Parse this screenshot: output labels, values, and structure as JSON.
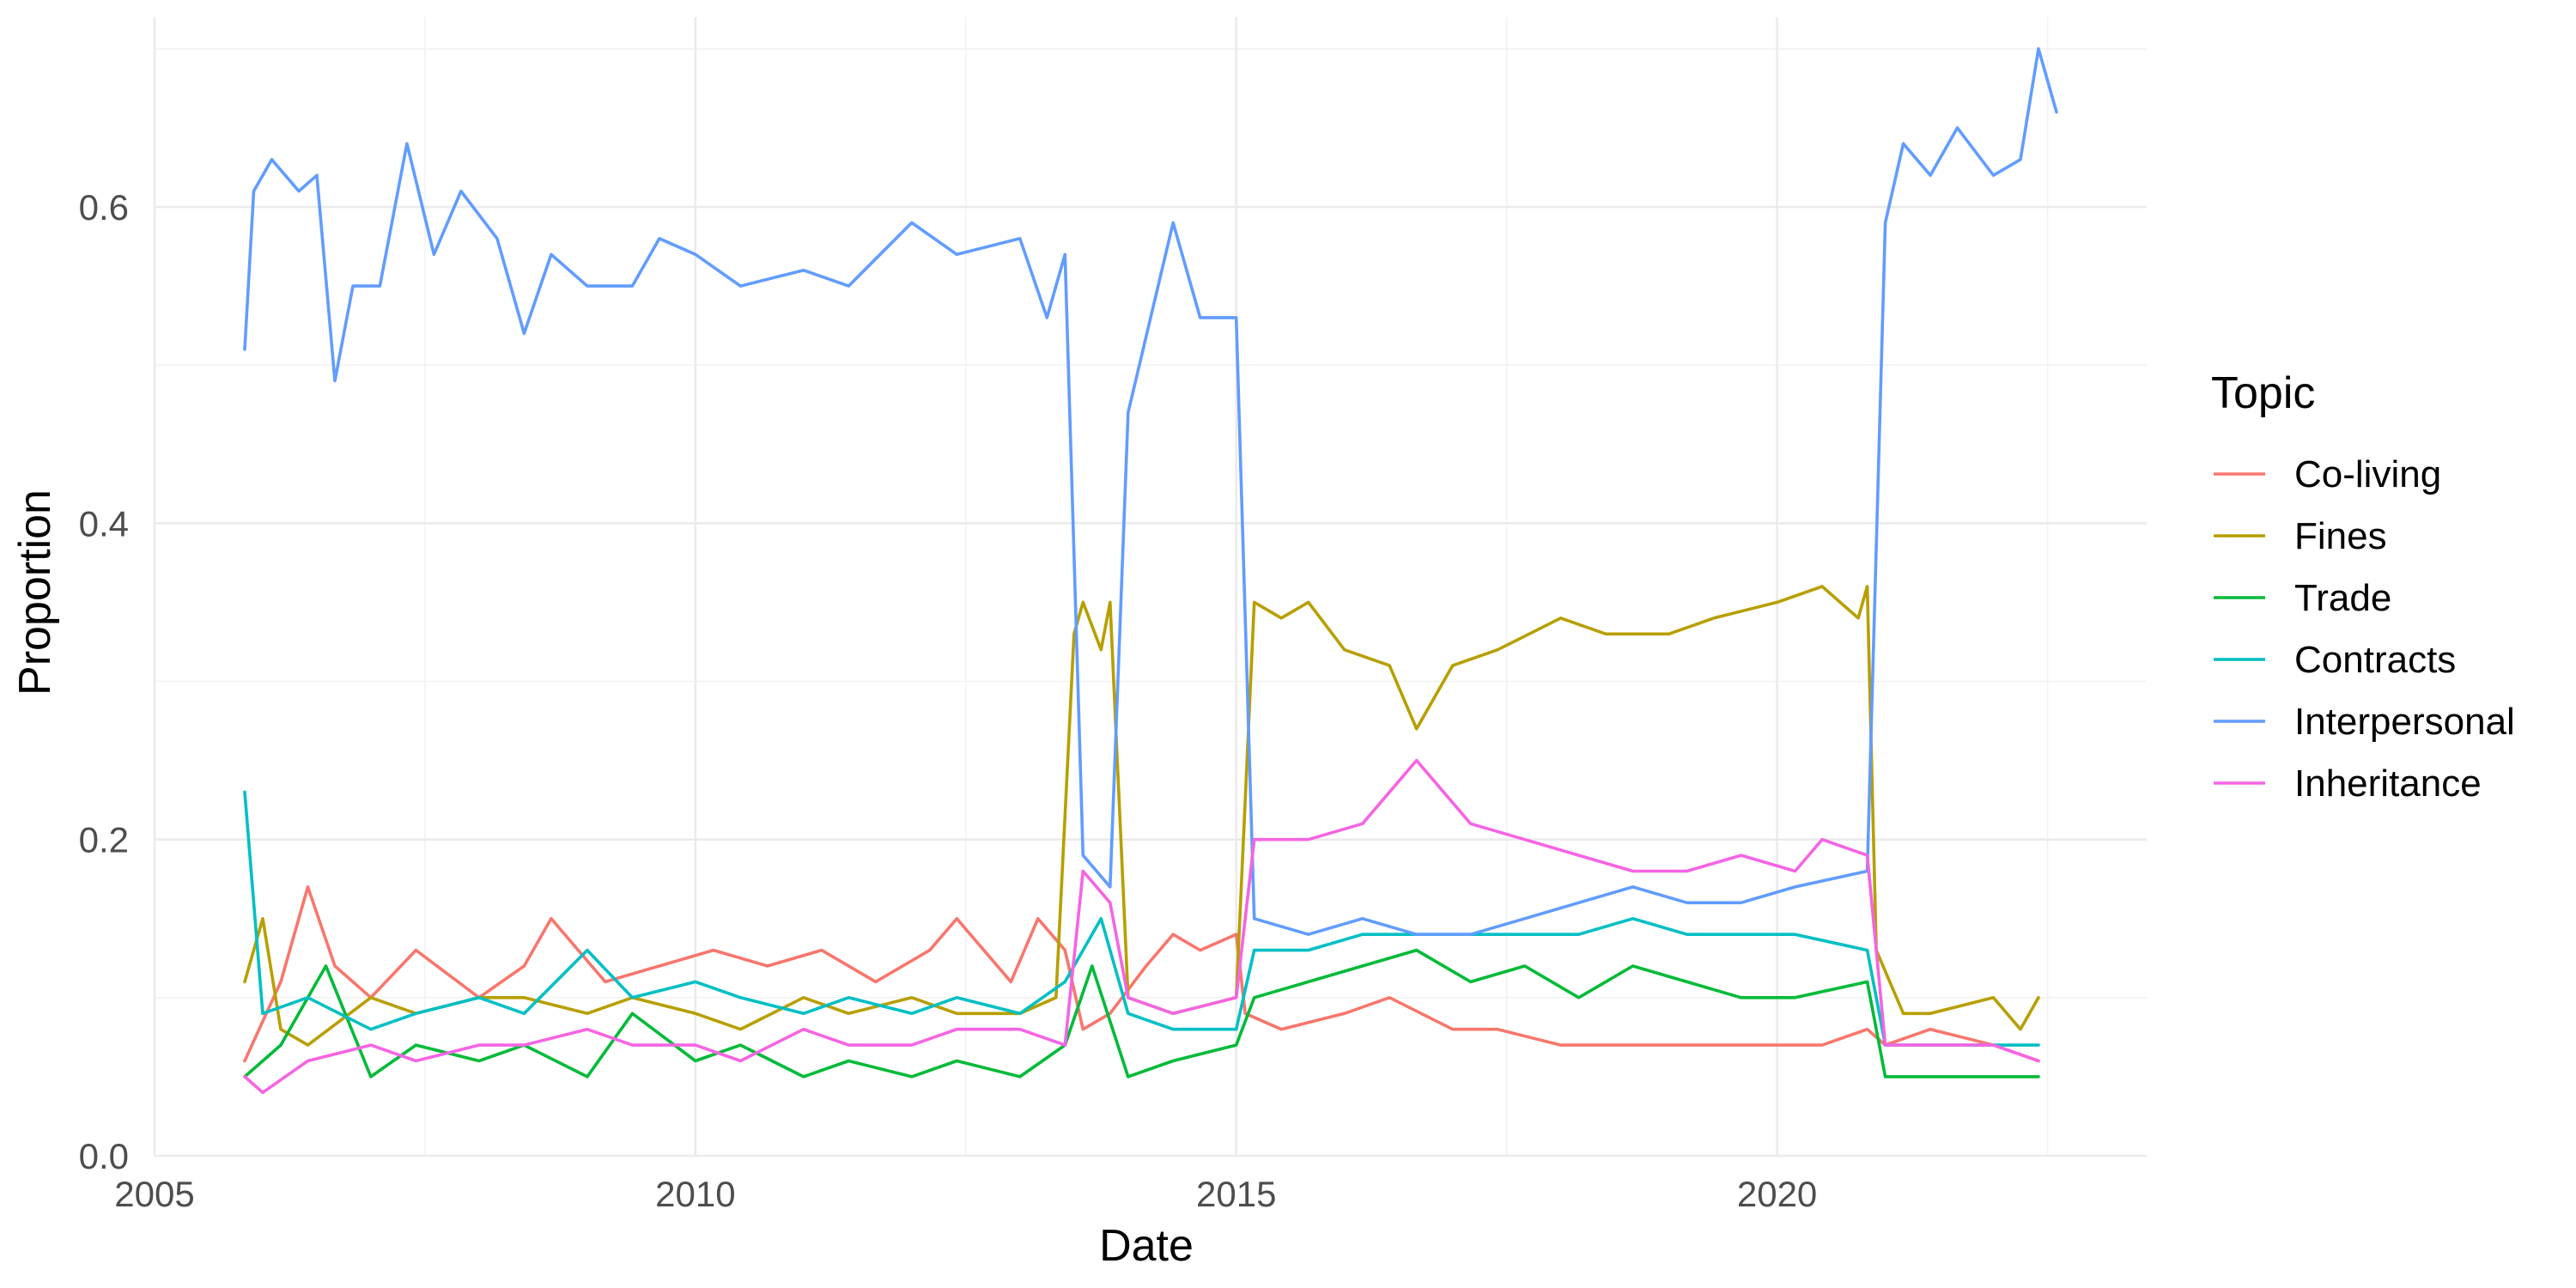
{
  "chart_data": {
    "type": "line",
    "title": "",
    "xlabel": "Date",
    "ylabel": "Proportion",
    "x_range": [
      "2005-01-01",
      "2023-06-01"
    ],
    "ylim": [
      0,
      0.72
    ],
    "x_ticks": [
      {
        "label": "2005",
        "date": "2005-01-01"
      },
      {
        "label": "2010",
        "date": "2010-01-01"
      },
      {
        "label": "2015",
        "date": "2015-01-01"
      },
      {
        "label": "2020",
        "date": "2020-01-01"
      }
    ],
    "y_ticks": [
      0,
      0.2,
      0.4,
      0.6
    ],
    "y_tick_labels": [
      "0.0",
      "0.2",
      "0.4",
      "0.6"
    ],
    "grid": true,
    "legend": {
      "title": "Topic",
      "position": "right"
    },
    "series": [
      {
        "name": "Co-living",
        "color": "#F8766D",
        "points": [
          [
            "2005-11",
            0.06
          ],
          [
            "2006-03",
            0.11
          ],
          [
            "2006-06",
            0.17
          ],
          [
            "2006-09",
            0.12
          ],
          [
            "2007-01",
            0.1
          ],
          [
            "2007-06",
            0.13
          ],
          [
            "2008-01",
            0.1
          ],
          [
            "2008-06",
            0.12
          ],
          [
            "2008-09",
            0.15
          ],
          [
            "2009-03",
            0.11
          ],
          [
            "2009-09",
            0.12
          ],
          [
            "2010-03",
            0.13
          ],
          [
            "2010-09",
            0.12
          ],
          [
            "2011-03",
            0.13
          ],
          [
            "2011-09",
            0.11
          ],
          [
            "2012-03",
            0.13
          ],
          [
            "2012-06",
            0.15
          ],
          [
            "2012-12",
            0.11
          ],
          [
            "2013-03",
            0.15
          ],
          [
            "2013-06",
            0.13
          ],
          [
            "2013-08",
            0.08
          ],
          [
            "2013-11",
            0.09
          ],
          [
            "2014-03",
            0.12
          ],
          [
            "2014-06",
            0.14
          ],
          [
            "2014-09",
            0.13
          ],
          [
            "2015-01",
            0.14
          ],
          [
            "2015-02",
            0.09
          ],
          [
            "2015-06",
            0.08
          ],
          [
            "2016-01",
            0.09
          ],
          [
            "2016-06",
            0.1
          ],
          [
            "2017-01",
            0.08
          ],
          [
            "2017-06",
            0.08
          ],
          [
            "2018-01",
            0.07
          ],
          [
            "2018-06",
            0.07
          ],
          [
            "2019-01",
            0.07
          ],
          [
            "2019-06",
            0.07
          ],
          [
            "2020-01",
            0.07
          ],
          [
            "2020-06",
            0.07
          ],
          [
            "2020-11",
            0.08
          ],
          [
            "2021-01",
            0.07
          ],
          [
            "2021-06",
            0.08
          ],
          [
            "2022-01",
            0.07
          ],
          [
            "2022-06",
            0.06
          ]
        ]
      },
      {
        "name": "Fines",
        "color": "#B79F00",
        "points": [
          [
            "2005-11",
            0.11
          ],
          [
            "2006-01",
            0.15
          ],
          [
            "2006-03",
            0.08
          ],
          [
            "2006-06",
            0.07
          ],
          [
            "2007-01",
            0.1
          ],
          [
            "2007-06",
            0.09
          ],
          [
            "2008-01",
            0.1
          ],
          [
            "2008-06",
            0.1
          ],
          [
            "2009-01",
            0.09
          ],
          [
            "2009-06",
            0.1
          ],
          [
            "2010-01",
            0.09
          ],
          [
            "2010-06",
            0.08
          ],
          [
            "2011-01",
            0.1
          ],
          [
            "2011-06",
            0.09
          ],
          [
            "2012-01",
            0.1
          ],
          [
            "2012-06",
            0.09
          ],
          [
            "2013-01",
            0.09
          ],
          [
            "2013-05",
            0.1
          ],
          [
            "2013-07",
            0.33
          ],
          [
            "2013-08",
            0.35
          ],
          [
            "2013-10",
            0.32
          ],
          [
            "2013-11",
            0.35
          ],
          [
            "2014-01",
            0.1
          ],
          [
            "2014-06",
            0.09
          ],
          [
            "2015-01",
            0.1
          ],
          [
            "2015-03",
            0.35
          ],
          [
            "2015-06",
            0.34
          ],
          [
            "2015-09",
            0.35
          ],
          [
            "2016-01",
            0.32
          ],
          [
            "2016-06",
            0.31
          ],
          [
            "2016-09",
            0.27
          ],
          [
            "2017-01",
            0.31
          ],
          [
            "2017-06",
            0.32
          ],
          [
            "2018-01",
            0.34
          ],
          [
            "2018-06",
            0.33
          ],
          [
            "2019-01",
            0.33
          ],
          [
            "2019-06",
            0.34
          ],
          [
            "2020-01",
            0.35
          ],
          [
            "2020-06",
            0.36
          ],
          [
            "2020-10",
            0.34
          ],
          [
            "2020-11",
            0.36
          ],
          [
            "2020-12",
            0.13
          ],
          [
            "2021-03",
            0.09
          ],
          [
            "2021-06",
            0.09
          ],
          [
            "2022-01",
            0.1
          ],
          [
            "2022-04",
            0.08
          ],
          [
            "2022-06",
            0.1
          ]
        ]
      },
      {
        "name": "Trade",
        "color": "#00BA38",
        "points": [
          [
            "2005-11",
            0.05
          ],
          [
            "2006-03",
            0.07
          ],
          [
            "2006-08",
            0.12
          ],
          [
            "2007-01",
            0.05
          ],
          [
            "2007-06",
            0.07
          ],
          [
            "2008-01",
            0.06
          ],
          [
            "2008-06",
            0.07
          ],
          [
            "2009-01",
            0.05
          ],
          [
            "2009-06",
            0.09
          ],
          [
            "2010-01",
            0.06
          ],
          [
            "2010-06",
            0.07
          ],
          [
            "2011-01",
            0.05
          ],
          [
            "2011-06",
            0.06
          ],
          [
            "2012-01",
            0.05
          ],
          [
            "2012-06",
            0.06
          ],
          [
            "2013-01",
            0.05
          ],
          [
            "2013-06",
            0.07
          ],
          [
            "2013-09",
            0.12
          ],
          [
            "2014-01",
            0.05
          ],
          [
            "2014-06",
            0.06
          ],
          [
            "2015-01",
            0.07
          ],
          [
            "2015-03",
            0.1
          ],
          [
            "2015-09",
            0.11
          ],
          [
            "2016-03",
            0.12
          ],
          [
            "2016-09",
            0.13
          ],
          [
            "2017-03",
            0.11
          ],
          [
            "2017-09",
            0.12
          ],
          [
            "2018-03",
            0.1
          ],
          [
            "2018-09",
            0.12
          ],
          [
            "2019-03",
            0.11
          ],
          [
            "2019-09",
            0.1
          ],
          [
            "2020-03",
            0.1
          ],
          [
            "2020-11",
            0.11
          ],
          [
            "2021-01",
            0.05
          ],
          [
            "2021-06",
            0.05
          ],
          [
            "2022-01",
            0.05
          ],
          [
            "2022-06",
            0.05
          ]
        ]
      },
      {
        "name": "Contracts",
        "color": "#00BFC4",
        "points": [
          [
            "2005-11",
            0.23
          ],
          [
            "2006-01",
            0.09
          ],
          [
            "2006-06",
            0.1
          ],
          [
            "2007-01",
            0.08
          ],
          [
            "2007-06",
            0.09
          ],
          [
            "2008-01",
            0.1
          ],
          [
            "2008-06",
            0.09
          ],
          [
            "2009-01",
            0.13
          ],
          [
            "2009-06",
            0.1
          ],
          [
            "2010-01",
            0.11
          ],
          [
            "2010-06",
            0.1
          ],
          [
            "2011-01",
            0.09
          ],
          [
            "2011-06",
            0.1
          ],
          [
            "2012-01",
            0.09
          ],
          [
            "2012-06",
            0.1
          ],
          [
            "2013-01",
            0.09
          ],
          [
            "2013-06",
            0.11
          ],
          [
            "2013-10",
            0.15
          ],
          [
            "2014-01",
            0.09
          ],
          [
            "2014-06",
            0.08
          ],
          [
            "2015-01",
            0.08
          ],
          [
            "2015-03",
            0.13
          ],
          [
            "2015-09",
            0.13
          ],
          [
            "2016-03",
            0.14
          ],
          [
            "2016-09",
            0.14
          ],
          [
            "2017-03",
            0.14
          ],
          [
            "2017-09",
            0.14
          ],
          [
            "2018-03",
            0.14
          ],
          [
            "2018-09",
            0.15
          ],
          [
            "2019-03",
            0.14
          ],
          [
            "2019-09",
            0.14
          ],
          [
            "2020-03",
            0.14
          ],
          [
            "2020-11",
            0.13
          ],
          [
            "2021-01",
            0.07
          ],
          [
            "2021-06",
            0.07
          ],
          [
            "2022-01",
            0.07
          ],
          [
            "2022-06",
            0.07
          ]
        ]
      },
      {
        "name": "Interpersonal",
        "color": "#619CFF",
        "points": [
          [
            "2005-11",
            0.51
          ],
          [
            "2005-12",
            0.61
          ],
          [
            "2006-02",
            0.63
          ],
          [
            "2006-05",
            0.61
          ],
          [
            "2006-07",
            0.62
          ],
          [
            "2006-09",
            0.49
          ],
          [
            "2006-11",
            0.55
          ],
          [
            "2007-02",
            0.55
          ],
          [
            "2007-05",
            0.64
          ],
          [
            "2007-08",
            0.57
          ],
          [
            "2007-11",
            0.61
          ],
          [
            "2008-03",
            0.58
          ],
          [
            "2008-06",
            0.52
          ],
          [
            "2008-09",
            0.57
          ],
          [
            "2009-01",
            0.55
          ],
          [
            "2009-06",
            0.55
          ],
          [
            "2009-09",
            0.58
          ],
          [
            "2010-01",
            0.57
          ],
          [
            "2010-06",
            0.55
          ],
          [
            "2011-01",
            0.56
          ],
          [
            "2011-06",
            0.55
          ],
          [
            "2012-01",
            0.59
          ],
          [
            "2012-06",
            0.57
          ],
          [
            "2013-01",
            0.58
          ],
          [
            "2013-04",
            0.53
          ],
          [
            "2013-06",
            0.57
          ],
          [
            "2013-08",
            0.19
          ],
          [
            "2013-11",
            0.17
          ],
          [
            "2014-01",
            0.47
          ],
          [
            "2014-06",
            0.59
          ],
          [
            "2014-09",
            0.53
          ],
          [
            "2015-01",
            0.53
          ],
          [
            "2015-03",
            0.15
          ],
          [
            "2015-09",
            0.14
          ],
          [
            "2016-03",
            0.15
          ],
          [
            "2016-09",
            0.14
          ],
          [
            "2017-03",
            0.14
          ],
          [
            "2017-09",
            0.15
          ],
          [
            "2018-03",
            0.16
          ],
          [
            "2018-09",
            0.17
          ],
          [
            "2019-03",
            0.16
          ],
          [
            "2019-09",
            0.16
          ],
          [
            "2020-03",
            0.17
          ],
          [
            "2020-11",
            0.18
          ],
          [
            "2021-01",
            0.59
          ],
          [
            "2021-03",
            0.64
          ],
          [
            "2021-06",
            0.62
          ],
          [
            "2021-09",
            0.65
          ],
          [
            "2022-01",
            0.62
          ],
          [
            "2022-04",
            0.63
          ],
          [
            "2022-06",
            0.7
          ],
          [
            "2022-08",
            0.66
          ]
        ]
      },
      {
        "name": "Inheritance",
        "color": "#F564E3",
        "points": [
          [
            "2005-11",
            0.05
          ],
          [
            "2006-01",
            0.04
          ],
          [
            "2006-06",
            0.06
          ],
          [
            "2007-01",
            0.07
          ],
          [
            "2007-06",
            0.06
          ],
          [
            "2008-01",
            0.07
          ],
          [
            "2008-06",
            0.07
          ],
          [
            "2009-01",
            0.08
          ],
          [
            "2009-06",
            0.07
          ],
          [
            "2010-01",
            0.07
          ],
          [
            "2010-06",
            0.06
          ],
          [
            "2011-01",
            0.08
          ],
          [
            "2011-06",
            0.07
          ],
          [
            "2012-01",
            0.07
          ],
          [
            "2012-06",
            0.08
          ],
          [
            "2013-01",
            0.08
          ],
          [
            "2013-06",
            0.07
          ],
          [
            "2013-08",
            0.18
          ],
          [
            "2013-11",
            0.16
          ],
          [
            "2014-01",
            0.1
          ],
          [
            "2014-06",
            0.09
          ],
          [
            "2015-01",
            0.1
          ],
          [
            "2015-03",
            0.2
          ],
          [
            "2015-09",
            0.2
          ],
          [
            "2016-03",
            0.21
          ],
          [
            "2016-06",
            0.23
          ],
          [
            "2016-09",
            0.25
          ],
          [
            "2017-03",
            0.21
          ],
          [
            "2017-09",
            0.2
          ],
          [
            "2018-03",
            0.19
          ],
          [
            "2018-09",
            0.18
          ],
          [
            "2019-03",
            0.18
          ],
          [
            "2019-09",
            0.19
          ],
          [
            "2020-03",
            0.18
          ],
          [
            "2020-06",
            0.2
          ],
          [
            "2020-11",
            0.19
          ],
          [
            "2021-01",
            0.07
          ],
          [
            "2021-06",
            0.07
          ],
          [
            "2022-01",
            0.07
          ],
          [
            "2022-06",
            0.06
          ]
        ]
      }
    ]
  }
}
